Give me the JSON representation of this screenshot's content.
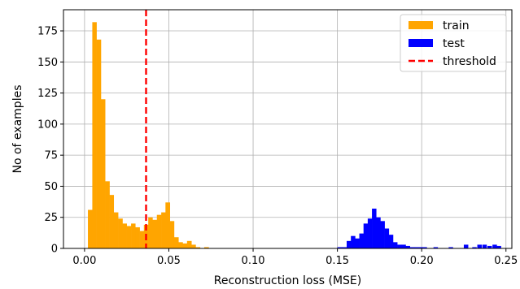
{
  "chart_data": {
    "type": "bar",
    "xlabel": "Reconstruction loss (MSE)",
    "ylabel": "No of examples",
    "xlim": [
      -0.0125,
      0.2535
    ],
    "ylim": [
      0,
      192
    ],
    "x_ticks": [
      0.0,
      0.05,
      0.1,
      0.15,
      0.2,
      0.25
    ],
    "x_tick_labels": [
      "0.00",
      "0.05",
      "0.10",
      "0.15",
      "0.20",
      "0.25"
    ],
    "y_ticks": [
      0,
      25,
      50,
      75,
      100,
      125,
      150,
      175
    ],
    "y_tick_labels": [
      "0",
      "25",
      "50",
      "75",
      "100",
      "125",
      "150",
      "175"
    ],
    "grid": true,
    "legend_position": "top-right",
    "threshold": {
      "name": "threshold",
      "x": 0.0365,
      "color": "#ff0000",
      "style": "dashed"
    },
    "series": [
      {
        "name": "train",
        "color": "#ffa500",
        "bins": [
          [
            0.002,
            0.0046,
            31
          ],
          [
            0.0046,
            0.0071,
            182
          ],
          [
            0.0071,
            0.0097,
            168
          ],
          [
            0.0097,
            0.0122,
            120
          ],
          [
            0.0122,
            0.0148,
            54
          ],
          [
            0.0148,
            0.0173,
            43
          ],
          [
            0.0173,
            0.0199,
            29
          ],
          [
            0.0199,
            0.0225,
            24
          ],
          [
            0.0225,
            0.025,
            20
          ],
          [
            0.025,
            0.0276,
            18
          ],
          [
            0.0276,
            0.0301,
            20
          ],
          [
            0.0301,
            0.0327,
            17
          ],
          [
            0.0327,
            0.0352,
            14
          ],
          [
            0.0352,
            0.0378,
            19
          ],
          [
            0.0378,
            0.0403,
            25
          ],
          [
            0.0403,
            0.0429,
            23
          ],
          [
            0.0429,
            0.0455,
            27
          ],
          [
            0.0455,
            0.048,
            29
          ],
          [
            0.048,
            0.0506,
            37
          ],
          [
            0.0506,
            0.0531,
            22
          ],
          [
            0.0531,
            0.0557,
            9
          ],
          [
            0.0557,
            0.0582,
            5
          ],
          [
            0.0582,
            0.0608,
            4
          ],
          [
            0.0608,
            0.0634,
            6
          ],
          [
            0.0634,
            0.0659,
            3
          ],
          [
            0.0659,
            0.0685,
            1
          ],
          [
            0.071,
            0.0736,
            1
          ]
        ]
      },
      {
        "name": "test",
        "color": "#0000ff",
        "bins": [
          [
            0.15,
            0.153,
            1
          ],
          [
            0.153,
            0.1555,
            1
          ],
          [
            0.1555,
            0.158,
            6
          ],
          [
            0.158,
            0.1605,
            10
          ],
          [
            0.1605,
            0.163,
            8
          ],
          [
            0.163,
            0.1655,
            12
          ],
          [
            0.1655,
            0.168,
            20
          ],
          [
            0.168,
            0.1705,
            24
          ],
          [
            0.1705,
            0.173,
            32
          ],
          [
            0.173,
            0.1755,
            25
          ],
          [
            0.1755,
            0.178,
            22
          ],
          [
            0.178,
            0.1805,
            16
          ],
          [
            0.1805,
            0.183,
            11
          ],
          [
            0.183,
            0.1855,
            5
          ],
          [
            0.1855,
            0.188,
            3
          ],
          [
            0.188,
            0.1905,
            3
          ],
          [
            0.1905,
            0.193,
            2
          ],
          [
            0.193,
            0.1955,
            1
          ],
          [
            0.1955,
            0.198,
            1
          ],
          [
            0.198,
            0.2005,
            1
          ],
          [
            0.2005,
            0.203,
            1
          ],
          [
            0.207,
            0.2095,
            1
          ],
          [
            0.216,
            0.2185,
            1
          ],
          [
            0.225,
            0.2275,
            3
          ],
          [
            0.23,
            0.2325,
            1
          ],
          [
            0.233,
            0.2355,
            3
          ],
          [
            0.236,
            0.2385,
            3
          ],
          [
            0.239,
            0.2415,
            2
          ],
          [
            0.242,
            0.2445,
            3
          ],
          [
            0.2445,
            0.247,
            2
          ]
        ]
      }
    ]
  }
}
